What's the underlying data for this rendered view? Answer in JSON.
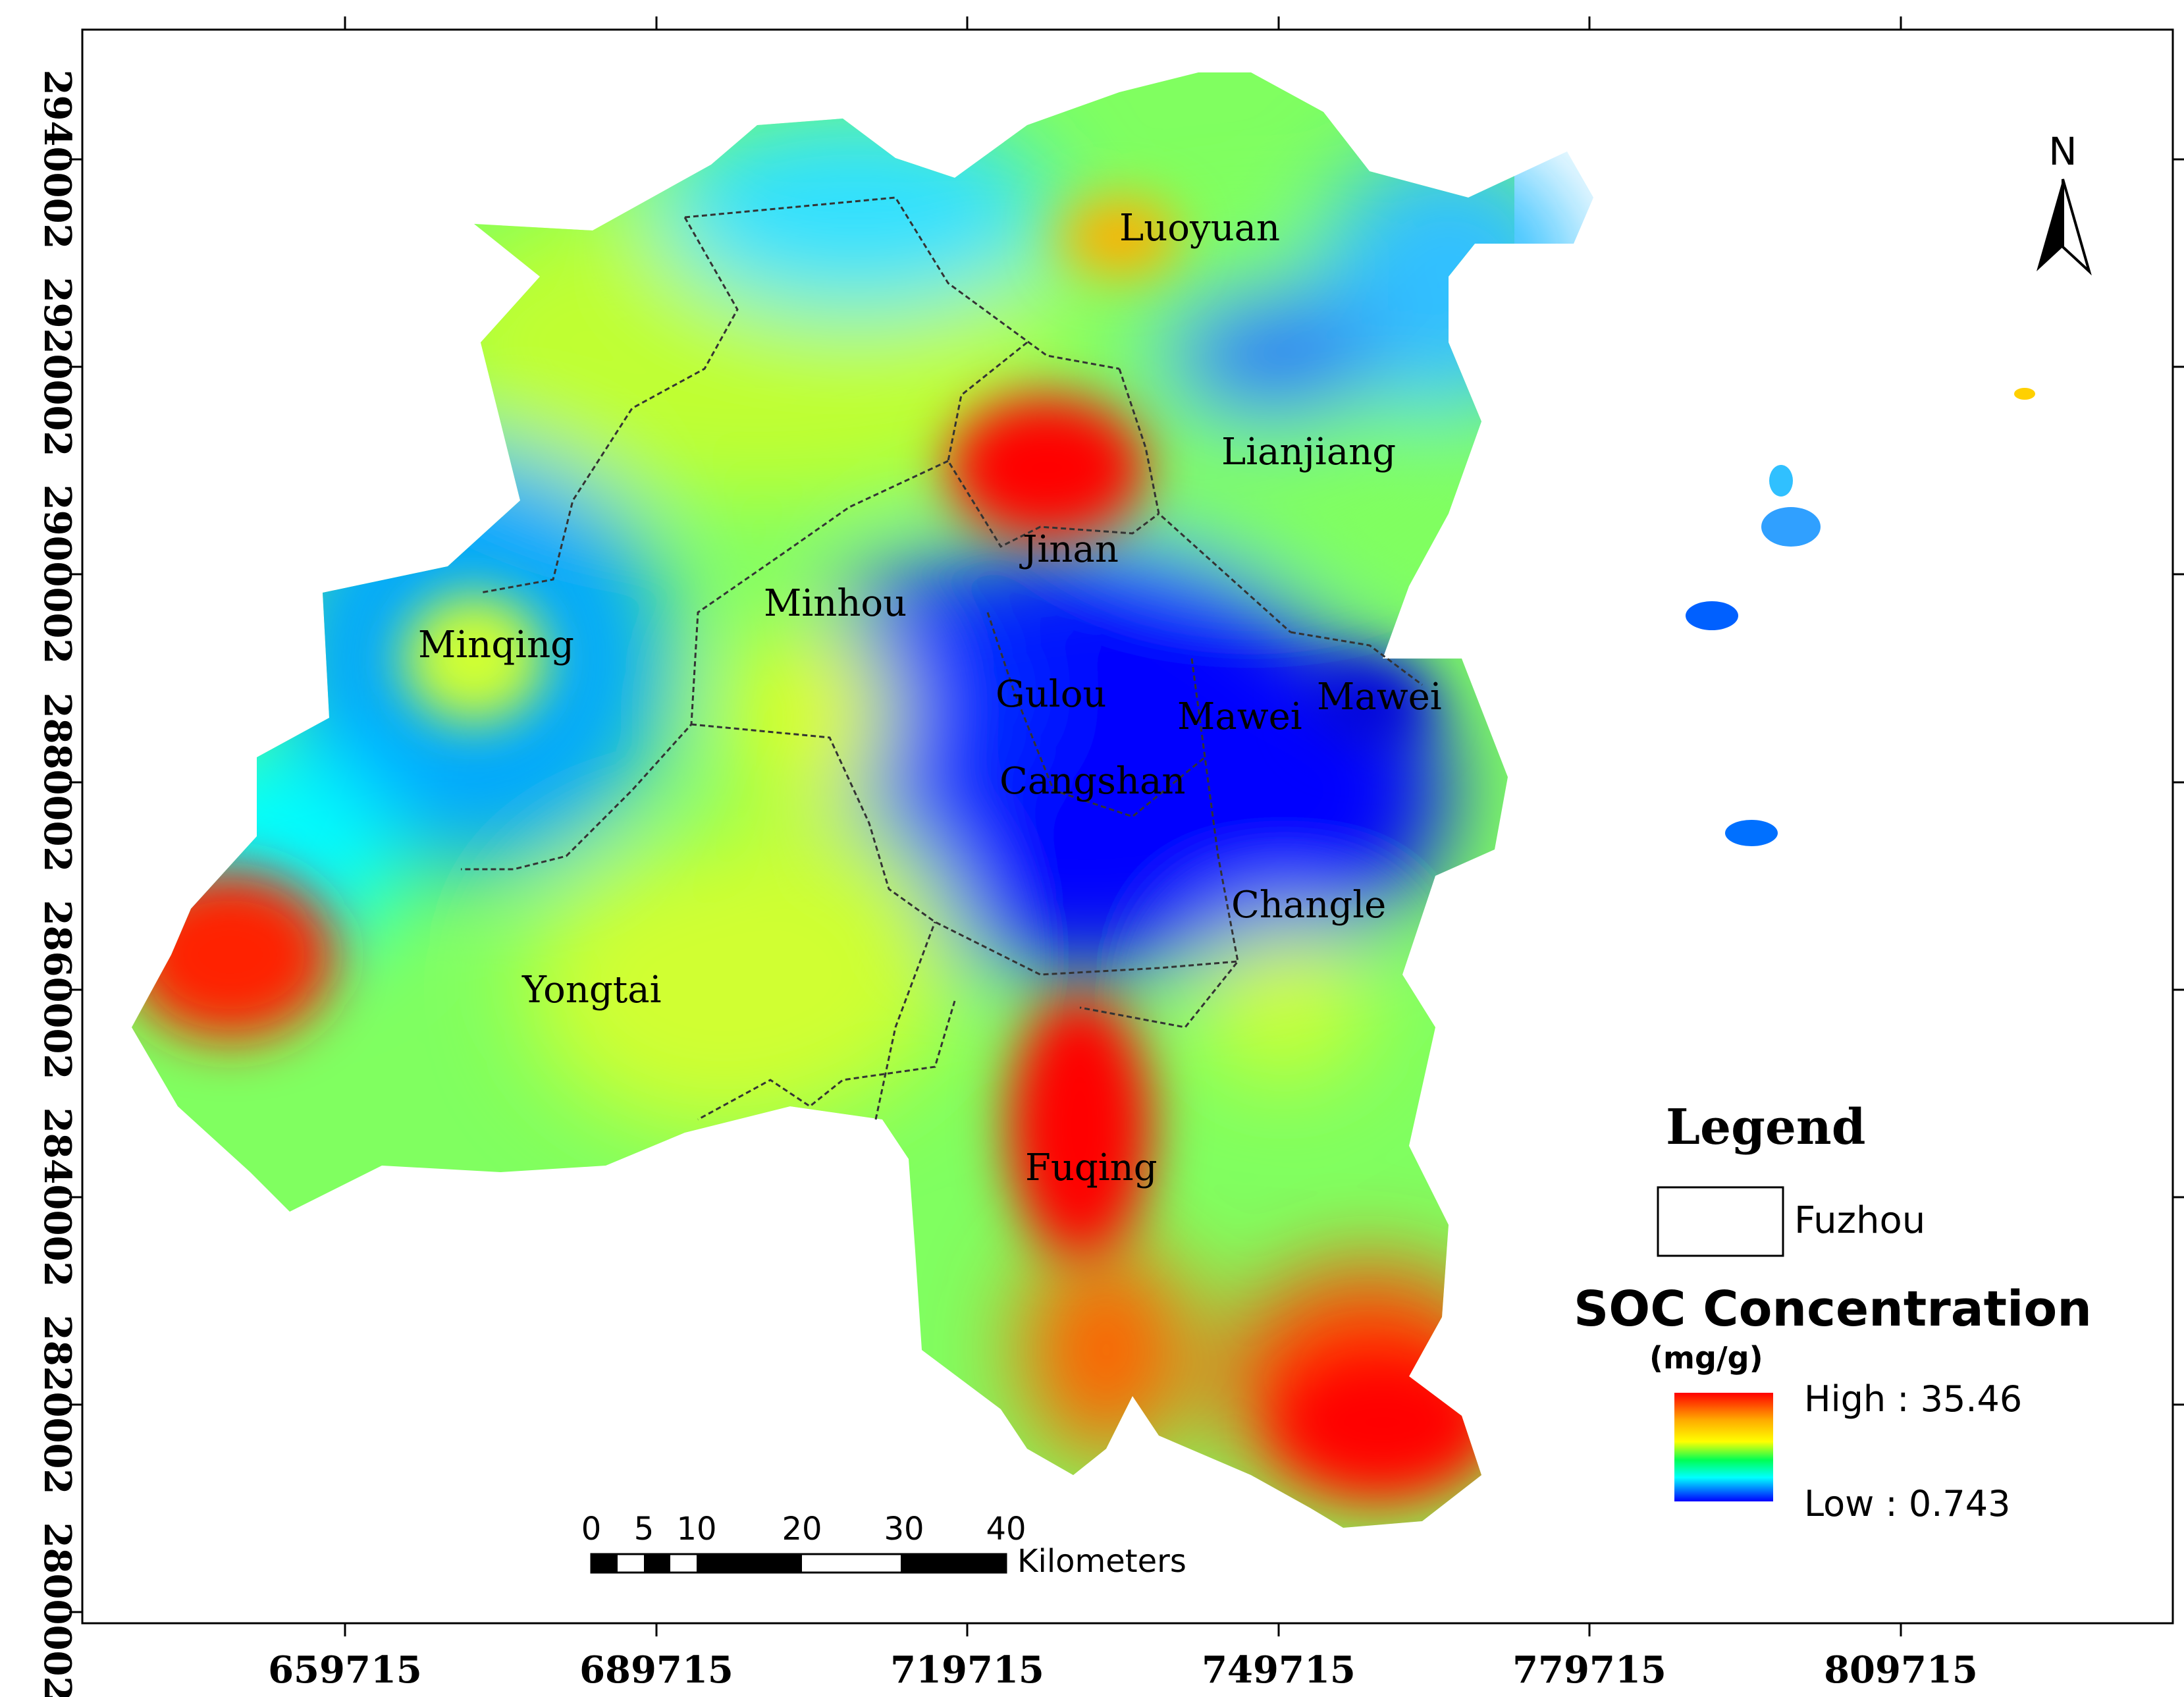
{
  "map": {
    "x_ticks": [
      "659715",
      "689715",
      "719715",
      "749715",
      "779715",
      "809715"
    ],
    "y_ticks": [
      "2940002",
      "2920002",
      "2900002",
      "2880002",
      "2860002",
      "2840002",
      "2820002",
      "2800002"
    ],
    "places": [
      "Luoyuan",
      "Lianjiang",
      "Jinan",
      "Minqing",
      "Minhou",
      "Gulou",
      "Mawei",
      "Mawei",
      "Cangshan",
      "Changle",
      "Yongtai",
      "Fuqing"
    ],
    "north_label": "N"
  },
  "legend": {
    "title": "Legend",
    "boundary_label": "Fuzhou",
    "soc_title": "SOC Concentration",
    "unit": "(mg/g)",
    "high_label": "High : 35.46",
    "low_label": "Low :  0.743",
    "colors": [
      "#ff0000",
      "#ffaa00",
      "#ffff00",
      "#00ff55",
      "#00ffff",
      "#0000ff"
    ]
  },
  "scale_bar": {
    "ticks": [
      "0",
      "5",
      "10",
      "20",
      "30",
      "40"
    ],
    "unit": "Kilometers"
  }
}
